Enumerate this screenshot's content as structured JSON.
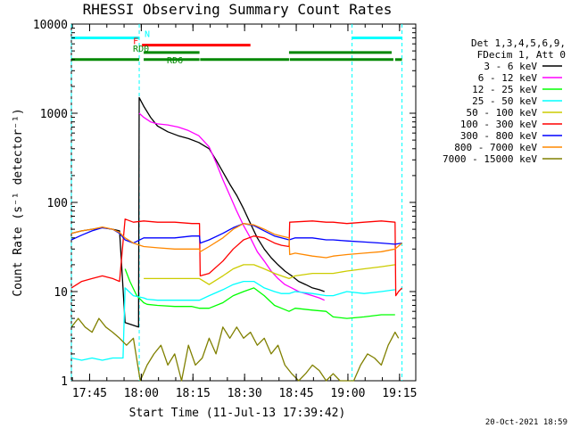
{
  "chart_data": {
    "type": "line",
    "title": "RHESSI Observing Summary Count Rates",
    "xlabel": "Start Time (11-Jul-13 17:39:42)",
    "ylabel": "Count Rate (s⁻¹ detector⁻¹)",
    "yscale": "log",
    "ylim": [
      1,
      10000
    ],
    "xlim": [
      0,
      100
    ],
    "x_unit": "minutes after 17:39:42",
    "x_ticks": [
      {
        "t": 5.3,
        "label": "17:45"
      },
      {
        "t": 20.3,
        "label": "18:00"
      },
      {
        "t": 35.3,
        "label": "18:15"
      },
      {
        "t": 50.3,
        "label": "18:30"
      },
      {
        "t": 65.3,
        "label": "18:45"
      },
      {
        "t": 80.3,
        "label": "19:00"
      },
      {
        "t": 95.3,
        "label": "19:15"
      }
    ],
    "y_ticks": [
      {
        "v": 1,
        "label": "1"
      },
      {
        "v": 10,
        "label": "10"
      },
      {
        "v": 100,
        "label": "100"
      },
      {
        "v": 1000,
        "label": "1000"
      },
      {
        "v": 10000,
        "label": "10000"
      }
    ],
    "legend_header": [
      "Det 1,3,4,5,6,9,",
      "FDecim 1, Att 0"
    ],
    "legend_position": "right",
    "series": [
      {
        "name": "3 - 6 keV",
        "color": "#000000",
        "points": [
          [
            0,
            45
          ],
          [
            3,
            48
          ],
          [
            6,
            50
          ],
          [
            9,
            52
          ],
          [
            12,
            50
          ],
          [
            14,
            48
          ],
          [
            15.6,
            4.5
          ],
          [
            19.5,
            4.0
          ],
          [
            19.7,
            1500
          ],
          [
            21,
            1200
          ],
          [
            23,
            900
          ],
          [
            25,
            720
          ],
          [
            28,
            620
          ],
          [
            31,
            560
          ],
          [
            34,
            520
          ],
          [
            37,
            470
          ],
          [
            40,
            400
          ],
          [
            42,
            300
          ],
          [
            44,
            220
          ],
          [
            46,
            160
          ],
          [
            48,
            120
          ],
          [
            50,
            85
          ],
          [
            52,
            58
          ],
          [
            54,
            40
          ],
          [
            56,
            30
          ],
          [
            58,
            24
          ],
          [
            60,
            20
          ],
          [
            62,
            17
          ],
          [
            64,
            15
          ],
          [
            66,
            13
          ],
          [
            68,
            12
          ],
          [
            70,
            11
          ],
          [
            72,
            10.5
          ],
          [
            73.5,
            10
          ]
        ]
      },
      {
        "name": "6 - 12 keV",
        "color": "#ff00ff",
        "points": [
          [
            19.7,
            1000
          ],
          [
            21,
            900
          ],
          [
            23,
            800
          ],
          [
            25,
            760
          ],
          [
            28,
            740
          ],
          [
            31,
            700
          ],
          [
            34,
            640
          ],
          [
            37,
            560
          ],
          [
            40,
            420
          ],
          [
            42,
            280
          ],
          [
            44,
            180
          ],
          [
            46,
            120
          ],
          [
            48,
            80
          ],
          [
            50,
            55
          ],
          [
            52,
            40
          ],
          [
            54,
            28
          ],
          [
            56,
            22
          ],
          [
            58,
            17
          ],
          [
            60,
            14
          ],
          [
            62,
            12
          ],
          [
            64,
            11
          ],
          [
            66,
            10
          ],
          [
            68,
            9.5
          ],
          [
            70,
            9
          ],
          [
            72,
            8.5
          ],
          [
            73.5,
            8
          ]
        ]
      },
      {
        "name": "12 - 25 keV",
        "color": "#00ff00",
        "points": [
          [
            15.6,
            18
          ],
          [
            17,
            13
          ],
          [
            19,
            9
          ],
          [
            21,
            7.5
          ],
          [
            22,
            7.2
          ],
          [
            25,
            7
          ],
          [
            30,
            6.8
          ],
          [
            35,
            6.8
          ],
          [
            37.2,
            6.5
          ],
          [
            40,
            6.5
          ],
          [
            44,
            7.5
          ],
          [
            47,
            9
          ],
          [
            50,
            10
          ],
          [
            53,
            11
          ],
          [
            56,
            9
          ],
          [
            59,
            7
          ],
          [
            61,
            6.5
          ],
          [
            63.2,
            6
          ],
          [
            65,
            6.5
          ],
          [
            70,
            6.2
          ],
          [
            74,
            6
          ],
          [
            76,
            5.2
          ],
          [
            80,
            5
          ],
          [
            85,
            5.2
          ],
          [
            90,
            5.5
          ],
          [
            94,
            5.5
          ]
        ]
      },
      {
        "name": "25 - 50 keV",
        "color": "#00ffff",
        "points": [
          [
            0,
            1.8
          ],
          [
            3,
            1.7
          ],
          [
            6,
            1.8
          ],
          [
            9,
            1.7
          ],
          [
            12,
            1.8
          ],
          [
            15,
            1.8
          ],
          [
            15.6,
            11
          ],
          [
            18,
            9
          ],
          [
            21,
            8.5
          ],
          [
            22,
            8.2
          ],
          [
            25,
            8
          ],
          [
            30,
            8
          ],
          [
            35,
            8
          ],
          [
            37.2,
            8
          ],
          [
            40,
            9
          ],
          [
            44,
            10.5
          ],
          [
            47,
            12
          ],
          [
            50,
            13
          ],
          [
            53,
            13
          ],
          [
            56,
            11
          ],
          [
            59,
            10
          ],
          [
            61,
            9.5
          ],
          [
            63.2,
            9.5
          ],
          [
            65,
            10
          ],
          [
            70,
            9.5
          ],
          [
            74,
            9
          ],
          [
            76,
            9
          ],
          [
            80,
            10
          ],
          [
            85,
            9.5
          ],
          [
            90,
            10
          ],
          [
            94,
            10.5
          ]
        ]
      },
      {
        "name": "50 - 100 keV",
        "color": "#cccc00",
        "points": [
          [
            21,
            14
          ],
          [
            25,
            14
          ],
          [
            30,
            14
          ],
          [
            35,
            14
          ],
          [
            37.2,
            14
          ],
          [
            40,
            12
          ],
          [
            44,
            15
          ],
          [
            47,
            18
          ],
          [
            50,
            20
          ],
          [
            53,
            20
          ],
          [
            56,
            18
          ],
          [
            59,
            16
          ],
          [
            61,
            15
          ],
          [
            63.2,
            14
          ],
          [
            65,
            15
          ],
          [
            70,
            16
          ],
          [
            74,
            16
          ],
          [
            76,
            16
          ],
          [
            80,
            17
          ],
          [
            85,
            18
          ],
          [
            90,
            19
          ],
          [
            94,
            20
          ]
        ]
      },
      {
        "name": "100 - 300 keV",
        "color": "#ff0000",
        "points": [
          [
            0,
            11
          ],
          [
            3,
            13
          ],
          [
            6,
            14
          ],
          [
            9,
            15
          ],
          [
            12,
            14
          ],
          [
            14,
            13
          ],
          [
            15.6,
            65
          ],
          [
            18,
            60
          ],
          [
            21,
            62
          ],
          [
            25,
            60
          ],
          [
            30,
            60
          ],
          [
            35,
            58
          ],
          [
            37.2,
            58
          ],
          [
            37.4,
            15
          ],
          [
            40,
            16
          ],
          [
            44,
            22
          ],
          [
            47,
            30
          ],
          [
            50,
            38
          ],
          [
            53,
            42
          ],
          [
            56,
            40
          ],
          [
            59,
            35
          ],
          [
            61,
            33
          ],
          [
            63.2,
            32
          ],
          [
            63.4,
            60
          ],
          [
            70,
            62
          ],
          [
            74,
            60
          ],
          [
            76,
            60
          ],
          [
            80,
            58
          ],
          [
            85,
            60
          ],
          [
            90,
            62
          ],
          [
            94,
            60
          ],
          [
            94.2,
            9
          ],
          [
            95,
            10
          ],
          [
            96,
            11
          ]
        ]
      },
      {
        "name": "300 - 800 keV",
        "color": "#0000ff",
        "points": [
          [
            0,
            38
          ],
          [
            3,
            43
          ],
          [
            6,
            48
          ],
          [
            9,
            52
          ],
          [
            12,
            50
          ],
          [
            14,
            45
          ],
          [
            15.6,
            38
          ],
          [
            18,
            35
          ],
          [
            21,
            40
          ],
          [
            25,
            40
          ],
          [
            30,
            40
          ],
          [
            35,
            42
          ],
          [
            37.2,
            42
          ],
          [
            37.4,
            35
          ],
          [
            40,
            38
          ],
          [
            44,
            45
          ],
          [
            47,
            52
          ],
          [
            50,
            58
          ],
          [
            53,
            55
          ],
          [
            56,
            48
          ],
          [
            59,
            42
          ],
          [
            61,
            40
          ],
          [
            63.2,
            38
          ],
          [
            65,
            40
          ],
          [
            70,
            40
          ],
          [
            74,
            38
          ],
          [
            76,
            38
          ],
          [
            80,
            37
          ],
          [
            85,
            36
          ],
          [
            90,
            35
          ],
          [
            94,
            34
          ],
          [
            96,
            35
          ]
        ]
      },
      {
        "name": "800 - 7000 keV",
        "color": "#ff8800",
        "points": [
          [
            0,
            45
          ],
          [
            3,
            48
          ],
          [
            6,
            50
          ],
          [
            9,
            53
          ],
          [
            12,
            50
          ],
          [
            14,
            46
          ],
          [
            15.6,
            40
          ],
          [
            18,
            35
          ],
          [
            21,
            32
          ],
          [
            25,
            31
          ],
          [
            30,
            30
          ],
          [
            35,
            30
          ],
          [
            37.2,
            30
          ],
          [
            37.4,
            28
          ],
          [
            40,
            32
          ],
          [
            44,
            40
          ],
          [
            47,
            50
          ],
          [
            50,
            58
          ],
          [
            53,
            56
          ],
          [
            56,
            50
          ],
          [
            59,
            44
          ],
          [
            61,
            42
          ],
          [
            63.2,
            40
          ],
          [
            63.4,
            26
          ],
          [
            65,
            27
          ],
          [
            70,
            25
          ],
          [
            74,
            24
          ],
          [
            76,
            25
          ],
          [
            80,
            26
          ],
          [
            85,
            27
          ],
          [
            90,
            28
          ],
          [
            94,
            30
          ],
          [
            96,
            35
          ]
        ]
      },
      {
        "name": "7000 - 15000 keV",
        "color": "#808000",
        "points": [
          [
            0,
            4
          ],
          [
            2,
            5
          ],
          [
            4,
            4
          ],
          [
            6,
            3.5
          ],
          [
            8,
            5
          ],
          [
            10,
            4
          ],
          [
            12,
            3.5
          ],
          [
            14,
            3
          ],
          [
            16,
            2.5
          ],
          [
            18,
            3
          ],
          [
            20,
            1
          ],
          [
            22,
            1.5
          ],
          [
            24,
            2
          ],
          [
            26,
            2.5
          ],
          [
            28,
            1.5
          ],
          [
            30,
            2
          ],
          [
            32,
            1
          ],
          [
            34,
            2.5
          ],
          [
            36,
            1.5
          ],
          [
            38,
            1.8
          ],
          [
            40,
            3
          ],
          [
            42,
            2
          ],
          [
            44,
            4
          ],
          [
            46,
            3
          ],
          [
            48,
            4
          ],
          [
            50,
            3
          ],
          [
            52,
            3.5
          ],
          [
            54,
            2.5
          ],
          [
            56,
            3
          ],
          [
            58,
            2
          ],
          [
            60,
            2.5
          ],
          [
            62,
            1.5
          ],
          [
            64,
            1.2
          ],
          [
            66,
            1
          ],
          [
            68,
            1.2
          ],
          [
            70,
            1.5
          ],
          [
            72,
            1.3
          ],
          [
            74,
            1
          ],
          [
            76,
            1.2
          ],
          [
            78,
            1
          ],
          [
            80,
            1
          ],
          [
            82,
            1
          ],
          [
            84,
            1.5
          ],
          [
            86,
            2
          ],
          [
            88,
            1.8
          ],
          [
            90,
            1.5
          ],
          [
            92,
            2.5
          ],
          [
            94,
            3.5
          ],
          [
            95,
            3
          ]
        ]
      }
    ],
    "flags": [
      {
        "label": "N",
        "color": "#00ffff",
        "level": 7000,
        "segments": [
          [
            0,
            19.7
          ],
          [
            81.5,
            96
          ]
        ]
      },
      {
        "label": "F",
        "color": "#ff0000",
        "level": 5800,
        "segments": [
          [
            20.5,
            52
          ]
        ]
      },
      {
        "label": "RD0",
        "color": "#008800",
        "level": 4800,
        "segments": [
          [
            21,
            37.2
          ],
          [
            63.2,
            93
          ]
        ]
      },
      {
        "label": "RD6",
        "color": "#008800",
        "level": 4000,
        "segments": [
          [
            0,
            19.7
          ],
          [
            21,
            37.2
          ],
          [
            37.4,
            63.2
          ],
          [
            63.4,
            93.5
          ],
          [
            94,
            96
          ]
        ]
      }
    ],
    "markers": [
      {
        "t": 0,
        "color": "#00ffff"
      },
      {
        "t": 19.7,
        "color": "#00ffff"
      },
      {
        "t": 81.5,
        "color": "#00ffff"
      },
      {
        "t": 96,
        "color": "#00ffff"
      }
    ],
    "footer_date": "20-Oct-2021 18:59"
  }
}
